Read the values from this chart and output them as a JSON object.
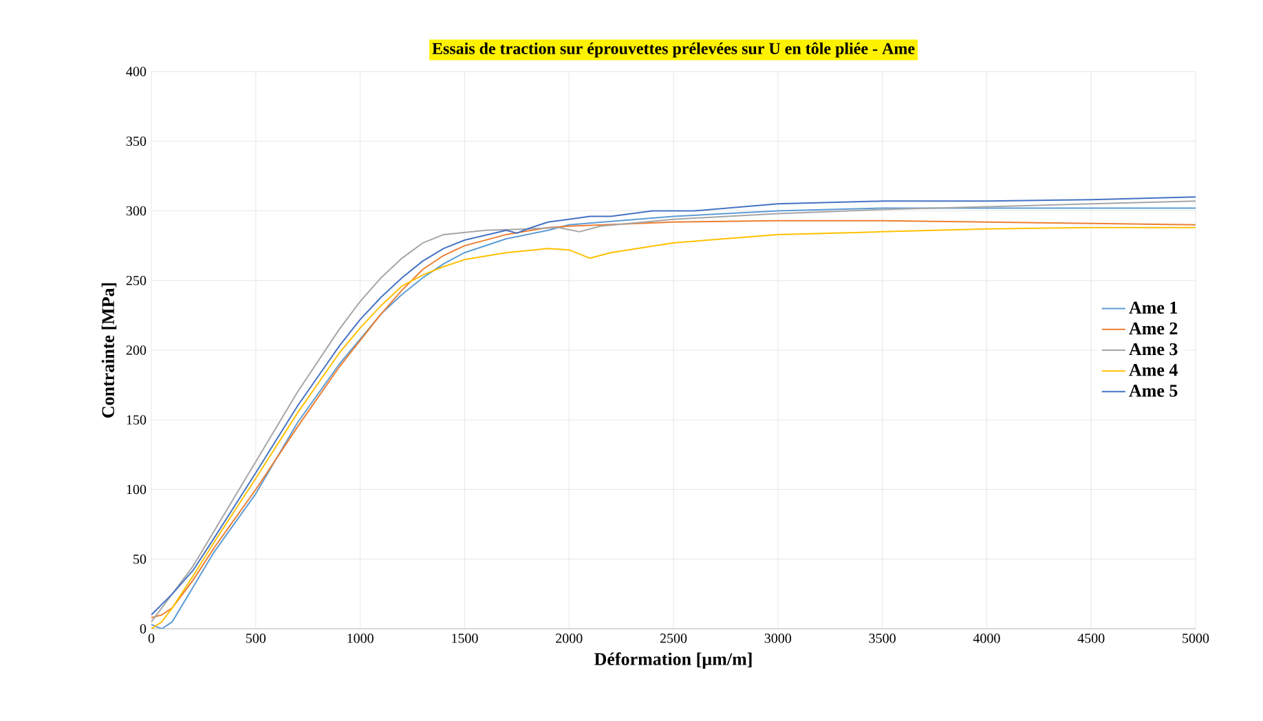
{
  "chart_data": {
    "type": "line",
    "title": "Essais de traction sur éprouvettes prélevées sur U en tôle pliée - Ame",
    "xlabel": "Déformation  [µm/m]",
    "ylabel": "Contrainte [MPa]",
    "xlim": [
      0,
      5000
    ],
    "ylim": [
      0,
      400
    ],
    "xticks": [
      0,
      500,
      1000,
      1500,
      2000,
      2500,
      3000,
      3500,
      4000,
      4500,
      5000
    ],
    "yticks": [
      0,
      50,
      100,
      150,
      200,
      250,
      300,
      350,
      400
    ],
    "grid": true,
    "legend": "right",
    "marker": "none",
    "line_style": "solid",
    "series": [
      {
        "name": "Ame 1",
        "color": "#5b9bd5",
        "x": [
          0,
          50,
          100,
          200,
          300,
          500,
          700,
          900,
          1000,
          1100,
          1200,
          1300,
          1400,
          1500,
          1700,
          1900,
          2000,
          2500,
          3000,
          3500,
          4000,
          4500,
          5000
        ],
        "values": [
          3,
          0,
          5,
          30,
          55,
          97,
          148,
          190,
          208,
          226,
          240,
          252,
          262,
          270,
          280,
          286,
          290,
          296,
          300,
          302,
          302,
          302,
          302
        ]
      },
      {
        "name": "Ame 2",
        "color": "#ed7d31",
        "x": [
          0,
          50,
          100,
          200,
          300,
          500,
          700,
          900,
          1000,
          1100,
          1200,
          1300,
          1400,
          1500,
          1700,
          1900,
          2000,
          2500,
          3000,
          3500,
          4000,
          4500,
          5000
        ],
        "values": [
          8,
          10,
          15,
          35,
          58,
          100,
          145,
          188,
          207,
          226,
          243,
          258,
          268,
          275,
          283,
          288,
          289,
          292,
          293,
          293,
          292,
          291,
          290
        ]
      },
      {
        "name": "Ame 3",
        "color": "#a5a5a5",
        "x": [
          0,
          100,
          200,
          300,
          500,
          700,
          900,
          1000,
          1100,
          1200,
          1300,
          1400,
          1600,
          1800,
          1950,
          2050,
          2150,
          2500,
          3000,
          3500,
          4000,
          4500,
          5000
        ],
        "values": [
          5,
          25,
          45,
          70,
          120,
          170,
          215,
          235,
          252,
          266,
          277,
          283,
          286,
          287,
          288,
          285,
          289,
          294,
          298,
          301,
          303,
          305,
          307
        ]
      },
      {
        "name": "Ame 4",
        "color": "#ffc000",
        "x": [
          0,
          50,
          100,
          200,
          300,
          500,
          700,
          900,
          1000,
          1100,
          1200,
          1300,
          1400,
          1500,
          1700,
          1900,
          2000,
          2100,
          2200,
          2500,
          3000,
          3500,
          4000,
          4500,
          5000
        ],
        "values": [
          0,
          5,
          15,
          38,
          62,
          108,
          155,
          198,
          216,
          232,
          246,
          254,
          260,
          265,
          270,
          273,
          272,
          266,
          270,
          277,
          283,
          285,
          287,
          288,
          288
        ]
      },
      {
        "name": "Ame 5",
        "color": "#4472c4",
        "x": [
          0,
          100,
          200,
          300,
          500,
          700,
          900,
          1000,
          1100,
          1200,
          1300,
          1400,
          1500,
          1700,
          1750,
          1800,
          1900,
          2000,
          2100,
          2200,
          2400,
          2600,
          3000,
          3500,
          4000,
          4500,
          5000
        ],
        "values": [
          10,
          25,
          42,
          65,
          112,
          160,
          203,
          222,
          238,
          252,
          264,
          273,
          279,
          286,
          284,
          287,
          292,
          294,
          296,
          296,
          300,
          300,
          305,
          307,
          307,
          308,
          310
        ]
      }
    ]
  }
}
